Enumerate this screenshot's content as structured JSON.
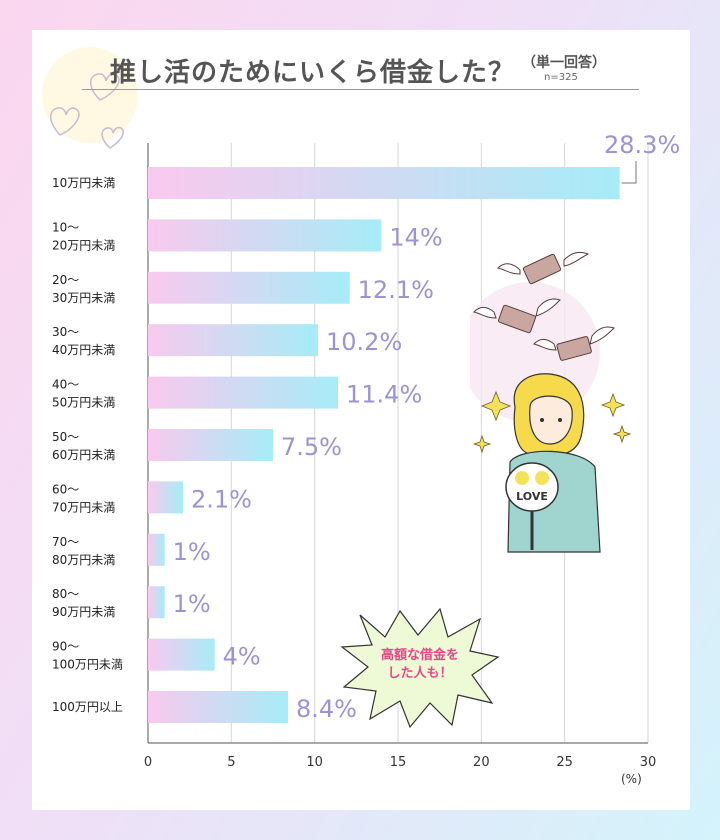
{
  "title": "推し活のためにいくら借金した？",
  "subtitle": "（単一回答）",
  "sample_size": "n=325",
  "unit": "(%)",
  "callout": {
    "line1": "高額な借金を",
    "line2": "した人も！"
  },
  "illustration": {
    "fan_text": "LOVE"
  },
  "colors": {
    "bar_start": "#f9c9ee",
    "bar_end": "#a6ecf7",
    "value_text": "#9b93d6",
    "callout_text": "#e8488a"
  },
  "chart_data": {
    "type": "bar",
    "orientation": "horizontal",
    "categories": [
      [
        "10万円未満"
      ],
      [
        "10～",
        "20万円未満"
      ],
      [
        "20～",
        "30万円未満"
      ],
      [
        "30～",
        "40万円未満"
      ],
      [
        "40～",
        "50万円未満"
      ],
      [
        "50～",
        "60万円未満"
      ],
      [
        "60～",
        "70万円未満"
      ],
      [
        "70～",
        "80万円未満"
      ],
      [
        "80～",
        "90万円未満"
      ],
      [
        "90～",
        "100万円未満"
      ],
      [
        "100万円以上"
      ]
    ],
    "values": [
      28.3,
      14,
      12.1,
      10.2,
      11.4,
      7.5,
      2.1,
      1,
      1,
      4,
      8.4
    ],
    "value_labels": [
      "28.3%",
      "14%",
      "12.1%",
      "10.2%",
      "11.4%",
      "7.5%",
      "2.1%",
      "1%",
      "1%",
      "4%",
      "8.4%"
    ],
    "xlim": [
      0,
      30
    ],
    "xticks": [
      0,
      5,
      10,
      15,
      20,
      25,
      30
    ],
    "grid": true
  }
}
